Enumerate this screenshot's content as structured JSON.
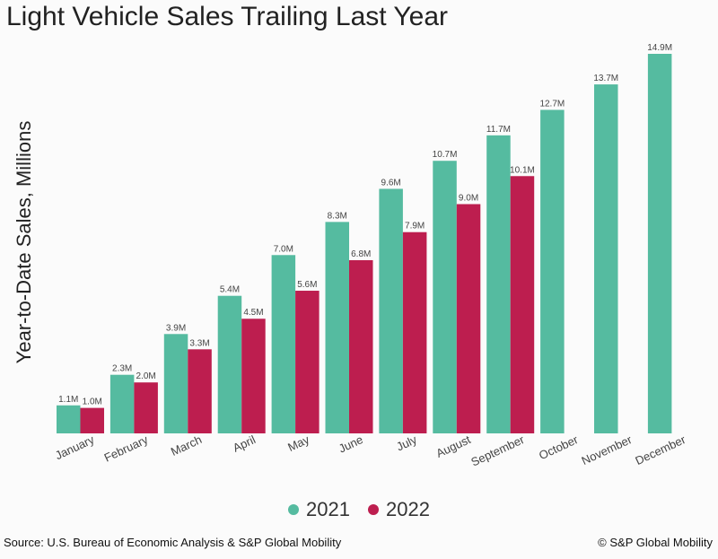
{
  "title": "Light Vehicle Sales Trailing Last Year",
  "footer": {
    "source": "Source: U.S. Bureau of Economic Analysis & S&P Global Mobility",
    "copyright": "© S&P Global Mobility"
  },
  "colors": {
    "series_2021": "#55bba0",
    "series_2022": "#bd1e4f"
  },
  "chart_data": {
    "type": "bar",
    "title": "Light Vehicle Sales Trailing Last Year",
    "xlabel": "",
    "ylabel": "Year-to-Date Sales, Millions",
    "categories": [
      "January",
      "February",
      "March",
      "April",
      "May",
      "June",
      "July",
      "August",
      "September",
      "October",
      "November",
      "December"
    ],
    "series": [
      {
        "name": "2021",
        "values": [
          1.1,
          2.3,
          3.9,
          5.4,
          7.0,
          8.3,
          9.6,
          10.7,
          11.7,
          12.7,
          13.7,
          14.9
        ],
        "labels": [
          "1.1M",
          "2.3M",
          "3.9M",
          "5.4M",
          "7.0M",
          "8.3M",
          "9.6M",
          "10.7M",
          "11.7M",
          "12.7M",
          "13.7M",
          "14.9M"
        ]
      },
      {
        "name": "2022",
        "values": [
          1.0,
          2.0,
          3.3,
          4.5,
          5.6,
          6.8,
          7.9,
          9.0,
          10.1,
          null,
          null,
          null
        ],
        "labels": [
          "1.0M",
          "2.0M",
          "3.3M",
          "4.5M",
          "5.6M",
          "6.8M",
          "7.9M",
          "9.0M",
          "10.1M",
          null,
          null,
          null
        ]
      }
    ],
    "ylim": [
      0,
      14.9
    ],
    "grid": false,
    "legend": "bottom-center"
  }
}
